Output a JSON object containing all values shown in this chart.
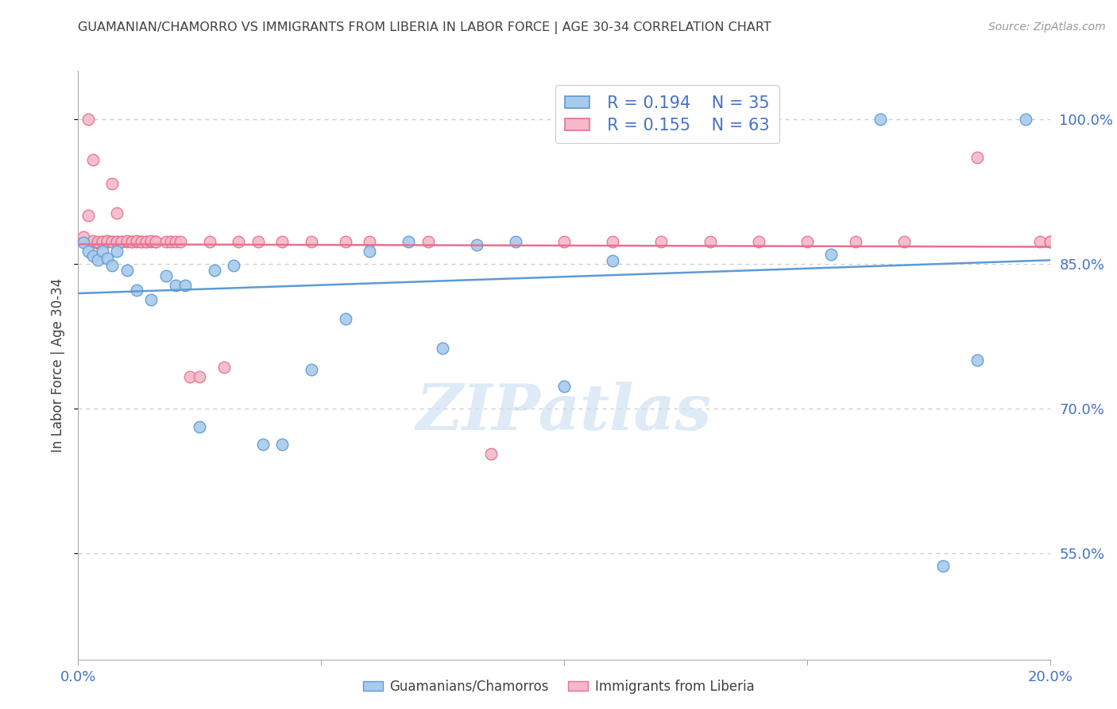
{
  "title": "GUAMANIAN/CHAMORRO VS IMMIGRANTS FROM LIBERIA IN LABOR FORCE | AGE 30-34 CORRELATION CHART",
  "source": "Source: ZipAtlas.com",
  "ylabel": "In Labor Force | Age 30-34",
  "ytick_vals": [
    0.55,
    0.7,
    0.85,
    1.0
  ],
  "ytick_labels": [
    "55.0%",
    "70.0%",
    "85.0%",
    "100.0%"
  ],
  "xmin": 0.0,
  "xmax": 0.2,
  "ymin": 0.44,
  "ymax": 1.05,
  "blue_face": "#A8CAEC",
  "blue_edge": "#5B9BD5",
  "pink_face": "#F4B8C8",
  "pink_edge": "#E87090",
  "blue_line": "#5B9BD5",
  "pink_line": "#E87090",
  "text_color": "#4472C4",
  "grid_color": "#CCCCCC",
  "title_color": "#404040",
  "label_blue": "Guamanians/Chamorros",
  "label_pink": "Immigrants from Liberia",
  "legend_blue_R": "R = 0.194",
  "legend_blue_N": "N = 35",
  "legend_pink_R": "R = 0.155",
  "legend_pink_N": "N = 63",
  "watermark_text": "ZIPatlas",
  "blue_x": [
    0.001,
    0.002,
    0.003,
    0.004,
    0.005,
    0.006,
    0.007,
    0.008,
    0.01,
    0.012,
    0.015,
    0.018,
    0.02,
    0.022,
    0.025,
    0.028,
    0.032,
    0.038,
    0.042,
    0.048,
    0.055,
    0.06,
    0.068,
    0.075,
    0.082,
    0.09,
    0.1,
    0.11,
    0.125,
    0.14,
    0.155,
    0.165,
    0.178,
    0.185,
    0.195
  ],
  "blue_y": [
    0.872,
    0.863,
    0.858,
    0.854,
    0.863,
    0.856,
    0.848,
    0.863,
    0.843,
    0.823,
    0.813,
    0.838,
    0.828,
    0.828,
    0.681,
    0.843,
    0.848,
    0.663,
    0.663,
    0.74,
    0.793,
    0.863,
    0.873,
    0.763,
    0.87,
    0.873,
    0.723,
    0.853,
    1.0,
    1.0,
    0.86,
    1.0,
    0.537,
    0.75,
    1.0
  ],
  "pink_x": [
    0.001,
    0.002,
    0.002,
    0.003,
    0.003,
    0.004,
    0.004,
    0.004,
    0.005,
    0.005,
    0.006,
    0.006,
    0.006,
    0.007,
    0.007,
    0.007,
    0.008,
    0.008,
    0.008,
    0.009,
    0.009,
    0.01,
    0.01,
    0.011,
    0.011,
    0.012,
    0.012,
    0.013,
    0.013,
    0.014,
    0.014,
    0.015,
    0.015,
    0.016,
    0.016,
    0.018,
    0.019,
    0.02,
    0.021,
    0.023,
    0.025,
    0.027,
    0.03,
    0.033,
    0.037,
    0.042,
    0.048,
    0.055,
    0.06,
    0.072,
    0.085,
    0.1,
    0.11,
    0.12,
    0.13,
    0.14,
    0.15,
    0.16,
    0.17,
    0.185,
    0.198,
    0.2,
    0.2
  ],
  "pink_y": [
    0.878,
    1.0,
    0.9,
    0.874,
    0.958,
    0.871,
    0.872,
    0.873,
    0.873,
    0.873,
    0.873,
    0.873,
    0.874,
    0.873,
    0.933,
    0.873,
    0.873,
    0.903,
    0.873,
    0.873,
    0.873,
    0.873,
    0.874,
    0.873,
    0.873,
    0.873,
    0.874,
    0.873,
    0.873,
    0.873,
    0.873,
    0.873,
    0.874,
    0.873,
    0.873,
    0.873,
    0.873,
    0.873,
    0.873,
    0.733,
    0.733,
    0.873,
    0.743,
    0.873,
    0.873,
    0.873,
    0.873,
    0.873,
    0.873,
    0.873,
    0.653,
    0.873,
    0.873,
    0.873,
    0.873,
    0.873,
    0.873,
    0.873,
    0.873,
    0.96,
    0.873,
    0.873,
    0.873
  ]
}
